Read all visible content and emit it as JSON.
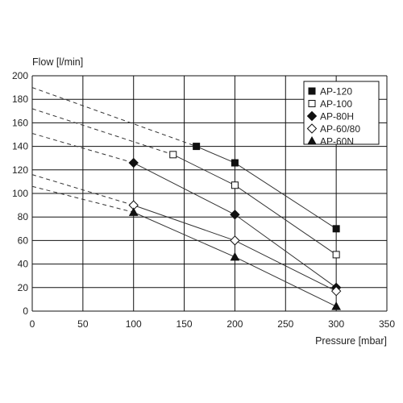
{
  "chart_data": {
    "type": "line",
    "title": "",
    "xlabel": "Pressure [mbar]",
    "ylabel": "Flow [l/min]",
    "xlim": [
      0,
      350
    ],
    "ylim": [
      0,
      200
    ],
    "xticks": [
      "0",
      "50",
      "100",
      "150",
      "200",
      "250",
      "300",
      "350"
    ],
    "yticks": [
      "0",
      "20",
      "40",
      "60",
      "80",
      "100",
      "120",
      "140",
      "160",
      "180",
      "200"
    ],
    "grid": true,
    "legend_position": "top-right",
    "series": [
      {
        "name": "AP-120",
        "marker": "filled-square",
        "x": [
          162,
          200,
          300
        ],
        "y": [
          140,
          126,
          70
        ],
        "extrapolation": {
          "x": [
            0,
            162
          ],
          "y": [
            190,
            140
          ]
        }
      },
      {
        "name": "AP-100",
        "marker": "open-square",
        "x": [
          139,
          200,
          300
        ],
        "y": [
          133,
          107,
          48
        ],
        "extrapolation": {
          "x": [
            0,
            139
          ],
          "y": [
            172,
            133
          ]
        }
      },
      {
        "name": "AP-80H",
        "marker": "filled-diamond",
        "x": [
          100,
          200,
          300
        ],
        "y": [
          126,
          82,
          20
        ],
        "extrapolation": {
          "x": [
            0,
            100
          ],
          "y": [
            151,
            126
          ]
        }
      },
      {
        "name": "AP-60/80",
        "marker": "open-diamond",
        "x": [
          100,
          200,
          300
        ],
        "y": [
          90,
          60,
          17
        ],
        "extrapolation": {
          "x": [
            0,
            100
          ],
          "y": [
            116,
            90
          ]
        }
      },
      {
        "name": "AP-60N",
        "marker": "filled-triangle",
        "x": [
          100,
          200,
          300
        ],
        "y": [
          84,
          46,
          4
        ],
        "extrapolation": {
          "x": [
            0,
            100
          ],
          "y": [
            106,
            84
          ]
        }
      }
    ]
  }
}
